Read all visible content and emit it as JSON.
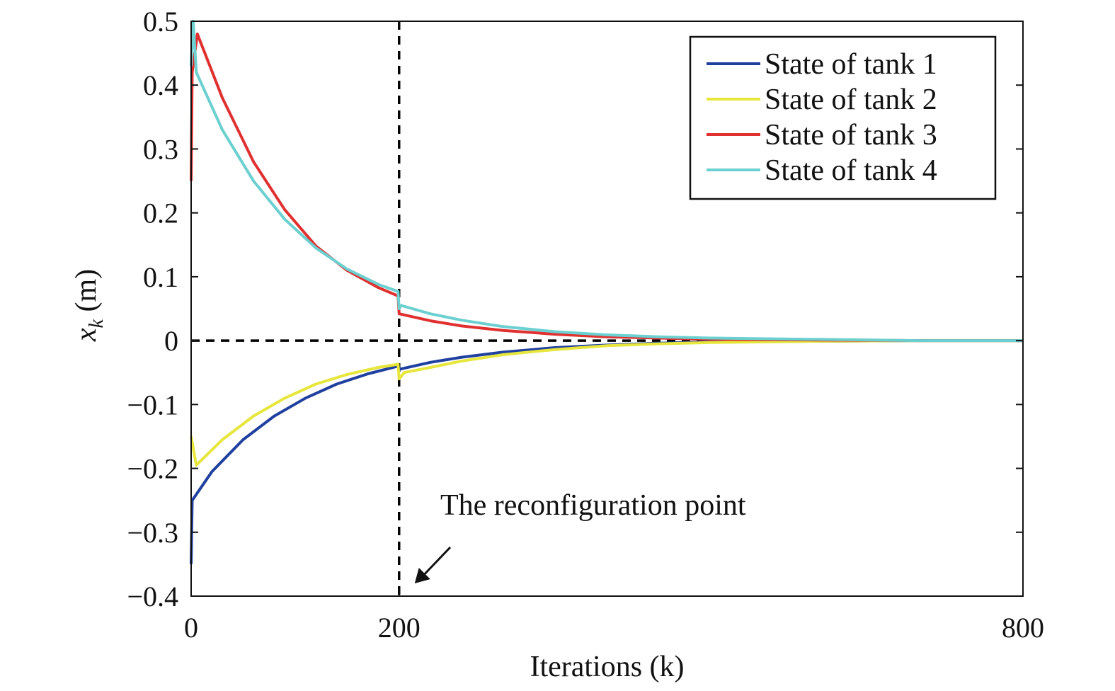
{
  "chart_data": {
    "type": "line",
    "xlabel": "Iterations (k)",
    "ylabel_main": "x",
    "ylabel_sub": "k",
    "ylabel_unit": " (m)",
    "xlim": [
      0,
      800
    ],
    "ylim": [
      -0.4,
      0.5
    ],
    "xticks": [
      0,
      200,
      800
    ],
    "xtick_labels": [
      "0",
      "200",
      "800"
    ],
    "yticks": [
      -0.4,
      -0.3,
      -0.2,
      -0.1,
      0,
      0.1,
      0.2,
      0.3,
      0.4,
      0.5
    ],
    "ytick_labels": [
      "−0.4",
      "−0.3",
      "−0.2",
      "−0.1",
      "0",
      "0.1",
      "0.2",
      "0.3",
      "0.4",
      "0.5"
    ],
    "grid": false,
    "legend_position": "top-right",
    "reference_lines": [
      {
        "orientation": "vertical",
        "x": 200,
        "style": "dashed",
        "color": "#000000"
      },
      {
        "orientation": "horizontal",
        "y": 0,
        "style": "dashed",
        "color": "#000000"
      }
    ],
    "annotation": {
      "text": "The reconfiguration point",
      "points_to": {
        "x": 200,
        "y": -0.4
      }
    },
    "series": [
      {
        "name": "State of tank 1",
        "color": "#2040a0",
        "points": [
          [
            0,
            -0.35
          ],
          [
            1,
            -0.25
          ],
          [
            20,
            -0.205
          ],
          [
            50,
            -0.155
          ],
          [
            80,
            -0.118
          ],
          [
            110,
            -0.09
          ],
          [
            140,
            -0.068
          ],
          [
            170,
            -0.052
          ],
          [
            199,
            -0.04
          ],
          [
            200,
            -0.045
          ],
          [
            230,
            -0.034
          ],
          [
            260,
            -0.026
          ],
          [
            300,
            -0.018
          ],
          [
            350,
            -0.011
          ],
          [
            400,
            -0.007
          ],
          [
            450,
            -0.004
          ],
          [
            500,
            -0.002
          ],
          [
            600,
            -0.001
          ],
          [
            700,
            0
          ],
          [
            800,
            0
          ]
        ]
      },
      {
        "name": "State of tank 2",
        "color": "#e6e63c",
        "points": [
          [
            0,
            -0.15
          ],
          [
            5,
            -0.195
          ],
          [
            30,
            -0.155
          ],
          [
            60,
            -0.118
          ],
          [
            90,
            -0.09
          ],
          [
            120,
            -0.068
          ],
          [
            150,
            -0.053
          ],
          [
            180,
            -0.042
          ],
          [
            199,
            -0.037
          ],
          [
            200,
            -0.06
          ],
          [
            205,
            -0.05
          ],
          [
            230,
            -0.042
          ],
          [
            260,
            -0.032
          ],
          [
            300,
            -0.022
          ],
          [
            350,
            -0.014
          ],
          [
            400,
            -0.008
          ],
          [
            450,
            -0.005
          ],
          [
            500,
            -0.003
          ],
          [
            600,
            -0.001
          ],
          [
            700,
            0
          ],
          [
            800,
            0
          ]
        ]
      },
      {
        "name": "State of tank 3",
        "color": "#e03030",
        "points": [
          [
            0,
            0.25
          ],
          [
            1,
            0.42
          ],
          [
            6,
            0.48
          ],
          [
            30,
            0.38
          ],
          [
            60,
            0.28
          ],
          [
            90,
            0.205
          ],
          [
            120,
            0.148
          ],
          [
            150,
            0.11
          ],
          [
            180,
            0.083
          ],
          [
            199,
            0.07
          ],
          [
            200,
            0.042
          ],
          [
            230,
            0.031
          ],
          [
            260,
            0.023
          ],
          [
            300,
            0.016
          ],
          [
            350,
            0.01
          ],
          [
            400,
            0.006
          ],
          [
            450,
            0.004
          ],
          [
            500,
            0.002
          ],
          [
            600,
            0.001
          ],
          [
            700,
            0
          ],
          [
            800,
            0
          ]
        ]
      },
      {
        "name": "State of tank 4",
        "color": "#6cd0d0",
        "points": [
          [
            0,
            0.43
          ],
          [
            2,
            0.5
          ],
          [
            5,
            0.42
          ],
          [
            30,
            0.33
          ],
          [
            60,
            0.25
          ],
          [
            90,
            0.19
          ],
          [
            120,
            0.145
          ],
          [
            150,
            0.112
          ],
          [
            180,
            0.088
          ],
          [
            199,
            0.077
          ],
          [
            200,
            0.05
          ],
          [
            202,
            0.055
          ],
          [
            230,
            0.042
          ],
          [
            260,
            0.032
          ],
          [
            300,
            0.022
          ],
          [
            350,
            0.014
          ],
          [
            400,
            0.009
          ],
          [
            450,
            0.006
          ],
          [
            500,
            0.004
          ],
          [
            600,
            0.002
          ],
          [
            700,
            0
          ],
          [
            800,
            0
          ]
        ]
      }
    ]
  }
}
